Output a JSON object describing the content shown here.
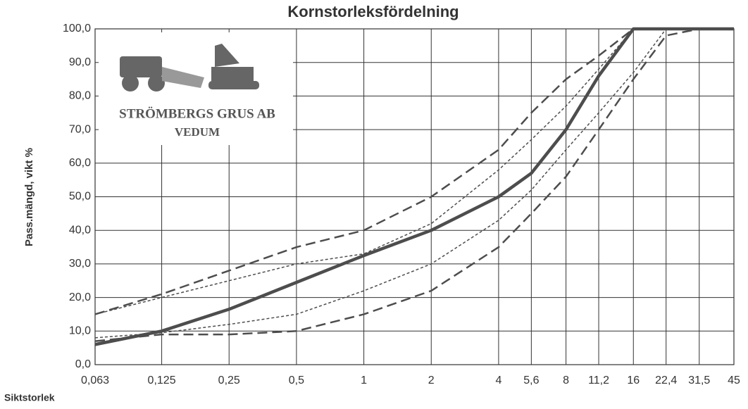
{
  "chart_data": {
    "type": "line",
    "title": "Kornstorleksfördelning",
    "y_label": "Pass.mängd, vikt %",
    "x_label": "Siktstorlek",
    "logo": {
      "line1": "STRÖMBERGS GRUS AB",
      "line2": "VEDUM"
    },
    "x_scale": "log",
    "grid": true,
    "x": [
      0.063,
      0.125,
      0.25,
      0.5,
      1,
      2,
      4,
      5.6,
      8,
      11.2,
      16,
      22.4,
      31.5,
      45
    ],
    "xlim": [
      0.063,
      45
    ],
    "xticks": [
      {
        "value": 0.063,
        "label": "0,063"
      },
      {
        "value": 0.125,
        "label": "0,125"
      },
      {
        "value": 0.25,
        "label": "0,25"
      },
      {
        "value": 0.5,
        "label": "0,5"
      },
      1,
      2,
      4,
      {
        "value": 5.6,
        "label": "5,6"
      },
      8,
      {
        "value": 11.2,
        "label": "11,2"
      },
      16,
      {
        "value": 22.4,
        "label": "22,4"
      },
      {
        "value": 31.5,
        "label": "31,5"
      },
      45
    ],
    "ylim": [
      0,
      100
    ],
    "yticks": [
      {
        "value": 0,
        "label": "0,0"
      },
      {
        "value": 10,
        "label": "10,0"
      },
      {
        "value": 20,
        "label": "20,0"
      },
      {
        "value": 30,
        "label": "30,0"
      },
      {
        "value": 40,
        "label": "40,0"
      },
      {
        "value": 50,
        "label": "50,0"
      },
      {
        "value": 60,
        "label": "60,0"
      },
      {
        "value": 70,
        "label": "70,0"
      },
      {
        "value": 80,
        "label": "80,0"
      },
      {
        "value": 90,
        "label": "90,0"
      },
      {
        "value": 100,
        "label": "100,0"
      }
    ],
    "series": [
      {
        "color": "#4d4d4d",
        "style": "long-dash",
        "values": [
          15,
          21,
          28,
          35,
          40,
          50,
          64,
          75,
          85,
          92,
          100,
          100,
          100,
          100
        ]
      },
      {
        "color": "#4d4d4d",
        "style": "short-dash",
        "values": [
          15,
          20,
          25,
          30,
          33,
          42,
          58,
          67,
          77,
          88,
          100,
          100,
          100,
          100
        ]
      },
      {
        "color": "#4d4d4d",
        "style": "short-dash",
        "values": [
          8,
          9.5,
          12,
          15,
          22,
          30,
          43,
          52,
          64,
          75,
          87,
          100,
          100,
          100
        ]
      },
      {
        "color": "#4d4d4d",
        "style": "long-dash",
        "values": [
          7,
          9,
          9,
          10,
          15,
          22,
          35,
          45,
          56,
          70,
          85,
          98,
          100,
          100
        ]
      },
      {
        "color": "#4d4d4d",
        "style": "solid",
        "values": [
          6,
          10,
          16.5,
          24.5,
          32.5,
          40,
          50,
          57,
          70,
          86,
          100,
          100,
          100,
          100
        ]
      }
    ]
  }
}
